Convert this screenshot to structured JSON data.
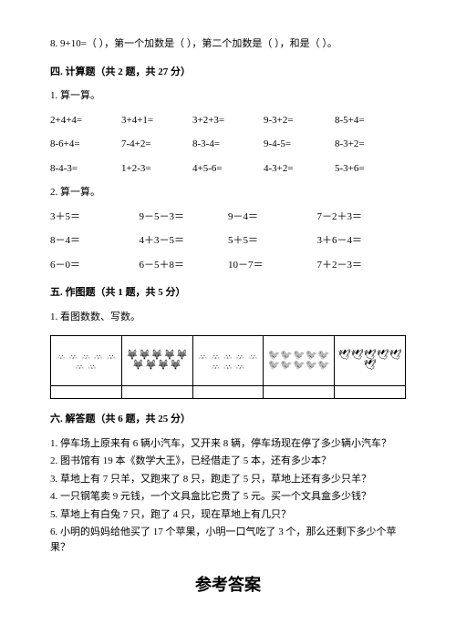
{
  "q8": {
    "text": "8. 9+10=（     ），第一个加数是（     ），第二个加数是（     ），和是（     ）。"
  },
  "section4": {
    "title": "四. 计算题（共 2 题，共 27 分）",
    "q1": {
      "label": "1. 算一算。",
      "rows": [
        [
          "2+4+4=",
          "3+4+1=",
          "3+2+3=",
          "9-3+2=",
          "8-5+4="
        ],
        [
          "8-6+4=",
          "7-4+2=",
          "8-3-4=",
          "9-4-5=",
          "8-3+2="
        ],
        [
          "8-4-3=",
          "1+2-3=",
          "4+5-6=",
          "4-3+2=",
          "5-3+6="
        ]
      ]
    },
    "q2": {
      "label": "2. 算一算。",
      "rows": [
        [
          "3＋5＝",
          "9－5－3＝",
          "9－4＝",
          "7－2＋3＝"
        ],
        [
          "8－4＝",
          "4＋3－5＝",
          "5＋5＝",
          "3＋6－4＝"
        ],
        [
          "6－0＝",
          "6－5＋8＝",
          "10－7＝",
          "7＋2－3＝"
        ]
      ]
    }
  },
  "section5": {
    "title": "五. 作图题（共 1 题，共 5 分）",
    "q1": "1. 看图数数、写数。",
    "pictures": [
      {
        "glyph": "🐰",
        "count": 7,
        "color": "#000"
      },
      {
        "glyph": "🦊",
        "count": 9,
        "color": "#000"
      },
      {
        "glyph": "🐰",
        "count": 8,
        "color": "#000"
      },
      {
        "glyph": "🐦",
        "count": 10,
        "color": "#000"
      },
      {
        "glyph": "🕊",
        "count": 6,
        "color": "#000"
      }
    ]
  },
  "section6": {
    "title": "六. 解答题（共 6 题，共 25 分）",
    "problems": [
      "1. 停车场上原来有 6 辆小汽车，又开来 8 辆，停车场现在停了多少辆小汽车？",
      "2. 图书馆有 19 本《数学大王》，已经借走了 5 本，还有多少本？",
      "3. 草地上有 7 只羊，又跑来了 8 只，跑走了 5 只，草地上还有多少只羊？",
      "4. 一只钢笔卖 9 元钱，一个文具盒比它贵了 5 元。买一个文具盒多少钱？",
      "5. 草地上有白兔 7 只，跑了 4 只，现在草地上有几只？",
      "6. 小明的妈妈给他买了 17 个苹果，小明一口气吃了 3 个，那么还剩下多少个苹果？"
    ]
  },
  "answerTitle": "参考答案"
}
